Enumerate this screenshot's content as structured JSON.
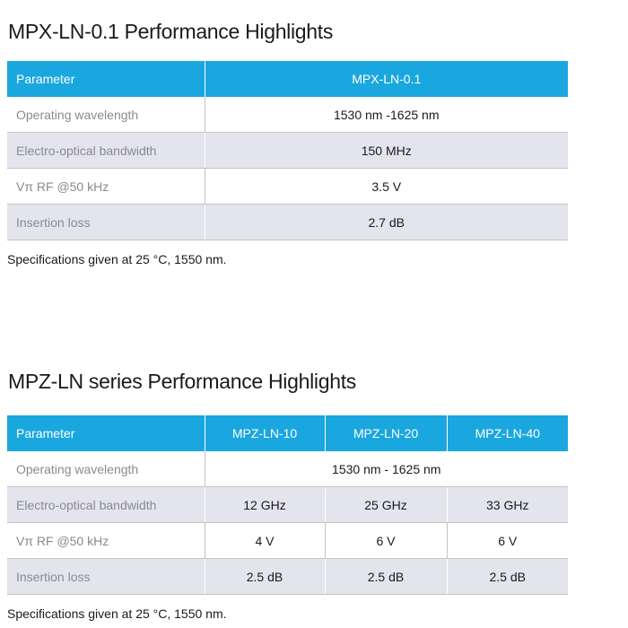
{
  "section1": {
    "title": "MPX-LN-0.1 Performance Highlights",
    "header": [
      "Parameter",
      "MPX-LN-0.1"
    ],
    "rows": [
      {
        "param": "Operating wavelength",
        "value": "1530 nm -1625 nm"
      },
      {
        "param": "Electro-optical bandwidth",
        "value": "150 MHz"
      },
      {
        "param": "Vπ RF @50 kHz",
        "value": "3.5 V"
      },
      {
        "param": "Insertion loss",
        "value": "2.7 dB"
      }
    ],
    "note": "Specifications given at 25 °C, 1550 nm."
  },
  "section2": {
    "title": "MPZ-LN series Performance Highlights",
    "header": [
      "Parameter",
      "MPZ-LN-10",
      "MPZ-LN-20",
      "MPZ-LN-40"
    ],
    "rows": [
      {
        "param": "Operating wavelength",
        "values": [
          "1530 nm -  1625 nm"
        ]
      },
      {
        "param": "Electro-optical bandwidth",
        "values": [
          "12 GHz",
          "25 GHz",
          "33 GHz"
        ]
      },
      {
        "param": "Vπ RF @50 kHz",
        "values": [
          "4  V",
          "6 V",
          "6 V"
        ]
      },
      {
        "param": "Insertion loss",
        "values": [
          "2.5 dB",
          "2.5 dB",
          "2.5 dB"
        ]
      }
    ],
    "note": "Specifications given at 25 °C, 1550 nm."
  }
}
